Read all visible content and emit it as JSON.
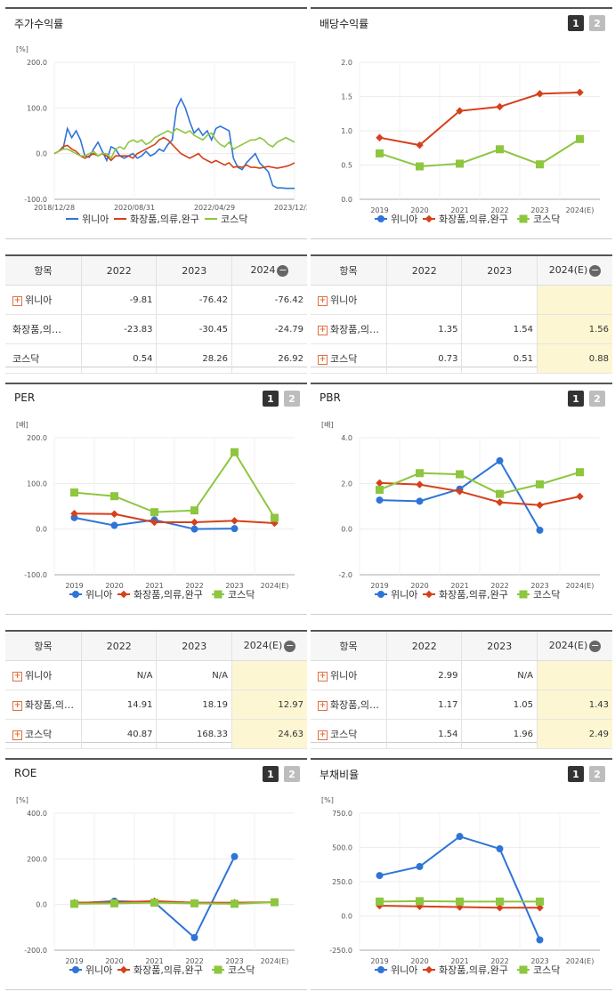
{
  "colors": {
    "s1": "#2e74d8",
    "s2": "#d6401a",
    "s3": "#8dc63f"
  },
  "series_names": [
    "위니아",
    "화장품,의류,완구",
    "코스닥"
  ],
  "panels": {
    "stock": {
      "title": "주가수익률",
      "unit": "[%]"
    },
    "dividend": {
      "title": "배당수익률",
      "unit": ""
    },
    "per": {
      "title": "PER",
      "unit": "[배]"
    },
    "pbr": {
      "title": "PBR",
      "unit": "[배]"
    },
    "roe": {
      "title": "ROE",
      "unit": "[%]"
    },
    "debt": {
      "title": "부채비율",
      "unit": "[%]"
    }
  },
  "tabs": {
    "one": "1",
    "two": "2"
  },
  "tables": {
    "stock": {
      "header": [
        "항목",
        "2022",
        "2023",
        "2024"
      ],
      "rows": [
        {
          "name": "위니아",
          "plus": true,
          "vals": [
            "-9.81",
            "-76.42",
            "-76.42"
          ]
        },
        {
          "name": "화장품,의…",
          "plus": false,
          "vals": [
            "-23.83",
            "-30.45",
            "-24.79"
          ]
        },
        {
          "name": "코스닥",
          "plus": false,
          "vals": [
            "0.54",
            "28.26",
            "26.92"
          ]
        }
      ]
    },
    "dividend": {
      "header": [
        "항목",
        "2022",
        "2023",
        "2024(E)"
      ],
      "rows": [
        {
          "name": "위니아",
          "plus": true,
          "vals": [
            "",
            "",
            ""
          ]
        },
        {
          "name": "화장품,의…",
          "plus": true,
          "vals": [
            "1.35",
            "1.54",
            "1.56"
          ]
        },
        {
          "name": "코스닥",
          "plus": true,
          "vals": [
            "0.73",
            "0.51",
            "0.88"
          ]
        }
      ]
    },
    "per": {
      "header": [
        "항목",
        "2022",
        "2023",
        "2024(E)"
      ],
      "rows": [
        {
          "name": "위니아",
          "plus": true,
          "vals": [
            "N/A",
            "N/A",
            ""
          ]
        },
        {
          "name": "화장품,의…",
          "plus": true,
          "vals": [
            "14.91",
            "18.19",
            "12.97"
          ]
        },
        {
          "name": "코스닥",
          "plus": true,
          "vals": [
            "40.87",
            "168.33",
            "24.63"
          ]
        }
      ]
    },
    "pbr": {
      "header": [
        "항목",
        "2022",
        "2023",
        "2024(E)"
      ],
      "rows": [
        {
          "name": "위니아",
          "plus": true,
          "vals": [
            "2.99",
            "N/A",
            ""
          ]
        },
        {
          "name": "화장품,의…",
          "plus": true,
          "vals": [
            "1.17",
            "1.05",
            "1.43"
          ]
        },
        {
          "name": "코스닥",
          "plus": true,
          "vals": [
            "1.54",
            "1.96",
            "2.49"
          ]
        }
      ]
    }
  },
  "chart_data": [
    {
      "id": "stock",
      "type": "line",
      "x_ticks": [
        "2018/12/28",
        "2020/08/31",
        "2022/04/29",
        "2023/12/28"
      ],
      "ylim": [
        -100,
        200
      ],
      "yticks": [
        "200.0",
        "100.0",
        "0.0",
        "-100.0"
      ],
      "series": [
        {
          "name": "위니아",
          "values": [
            0,
            5,
            10,
            55,
            35,
            50,
            30,
            -5,
            -8,
            10,
            25,
            5,
            -15,
            15,
            10,
            -5,
            -10,
            -5,
            0,
            -10,
            -5,
            5,
            -5,
            0,
            10,
            5,
            20,
            30,
            100,
            120,
            100,
            70,
            45,
            55,
            40,
            50,
            30,
            55,
            60,
            55,
            50,
            -10,
            -30,
            -35,
            -20,
            -10,
            0,
            -20,
            -30,
            -40,
            -70,
            -75,
            -75,
            -76,
            -76,
            -76
          ]
        },
        {
          "name": "화장품,의류,완구",
          "values": [
            0,
            5,
            15,
            18,
            10,
            5,
            -5,
            -10,
            -5,
            0,
            -5,
            0,
            -5,
            -15,
            -5,
            -5,
            -5,
            -5,
            -10,
            0,
            5,
            10,
            15,
            20,
            30,
            35,
            30,
            20,
            10,
            0,
            -5,
            -10,
            -5,
            0,
            -10,
            -15,
            -20,
            -15,
            -20,
            -25,
            -20,
            -30,
            -28,
            -30,
            -25,
            -30,
            -30,
            -32,
            -30,
            -28,
            -30,
            -32,
            -30,
            -28,
            -25,
            -20
          ]
        },
        {
          "name": "코스닥",
          "values": [
            0,
            5,
            10,
            10,
            5,
            0,
            -5,
            -5,
            0,
            5,
            -5,
            0,
            0,
            -10,
            10,
            15,
            10,
            25,
            30,
            25,
            30,
            20,
            25,
            35,
            40,
            45,
            50,
            45,
            55,
            50,
            45,
            50,
            40,
            35,
            30,
            40,
            45,
            30,
            20,
            15,
            25,
            10,
            15,
            20,
            25,
            30,
            30,
            35,
            30,
            20,
            15,
            25,
            30,
            35,
            30,
            25
          ]
        }
      ]
    },
    {
      "id": "dividend",
      "type": "line",
      "categories": [
        "2019",
        "2020",
        "2021",
        "2022",
        "2023",
        "2024(E)"
      ],
      "ylim": [
        0,
        2.0
      ],
      "yticks": [
        "2.0",
        "1.5",
        "1.0",
        "0.5",
        "0.0"
      ],
      "series": [
        {
          "name": "위니아",
          "values": [
            null,
            null,
            null,
            null,
            null,
            null
          ]
        },
        {
          "name": "화장품,의류,완구",
          "values": [
            0.9,
            0.79,
            1.29,
            1.35,
            1.54,
            1.56
          ]
        },
        {
          "name": "코스닥",
          "values": [
            0.67,
            0.48,
            0.52,
            0.73,
            0.51,
            0.88
          ]
        }
      ]
    },
    {
      "id": "per",
      "type": "line",
      "categories": [
        "2019",
        "2020",
        "2021",
        "2022",
        "2023",
        "2024(E)"
      ],
      "ylim": [
        -100,
        200
      ],
      "yticks": [
        "200.0",
        "100.0",
        "0.0",
        "-100.0"
      ],
      "series": [
        {
          "name": "위니아",
          "values": [
            25,
            8,
            20,
            0,
            1,
            null
          ]
        },
        {
          "name": "화장품,의류,완구",
          "values": [
            34,
            33,
            15,
            15,
            18.19,
            12.97
          ]
        },
        {
          "name": "코스닥",
          "values": [
            80,
            72,
            37,
            40.87,
            168.33,
            24.63
          ]
        }
      ]
    },
    {
      "id": "pbr",
      "type": "line",
      "categories": [
        "2019",
        "2020",
        "2021",
        "2022",
        "2023",
        "2024(E)"
      ],
      "ylim": [
        -2,
        4
      ],
      "yticks": [
        "4.0",
        "2.0",
        "0.0",
        "-2.0"
      ],
      "series": [
        {
          "name": "위니아",
          "values": [
            1.27,
            1.22,
            1.75,
            2.99,
            -0.05,
            null
          ]
        },
        {
          "name": "화장품,의류,완구",
          "values": [
            2.02,
            1.95,
            1.65,
            1.17,
            1.05,
            1.43
          ]
        },
        {
          "name": "코스닥",
          "values": [
            1.72,
            2.45,
            2.4,
            1.54,
            1.96,
            2.49
          ]
        }
      ]
    },
    {
      "id": "roe",
      "type": "line",
      "categories": [
        "2019",
        "2020",
        "2021",
        "2022",
        "2023",
        "2024(E)"
      ],
      "ylim": [
        -200,
        400
      ],
      "yticks": [
        "400.0",
        "200.0",
        "0.0",
        "-200.0"
      ],
      "series": [
        {
          "name": "위니아",
          "values": [
            5,
            15,
            10,
            -145,
            210,
            null
          ]
        },
        {
          "name": "화장품,의류,완구",
          "values": [
            8,
            10,
            15,
            8,
            8,
            10
          ]
        },
        {
          "name": "코스닥",
          "values": [
            3,
            5,
            8,
            5,
            3,
            10
          ]
        }
      ]
    },
    {
      "id": "debt",
      "type": "line",
      "categories": [
        "2019",
        "2020",
        "2021",
        "2022",
        "2023",
        "2024(E)"
      ],
      "ylim": [
        -250,
        750
      ],
      "yticks": [
        "750.0",
        "500.0",
        "250.0",
        "0.0",
        "-250.0"
      ],
      "series": [
        {
          "name": "위니아",
          "values": [
            295,
            360,
            580,
            490,
            -175,
            null
          ]
        },
        {
          "name": "화장품,의류,완구",
          "values": [
            75,
            70,
            65,
            60,
            60,
            null
          ]
        },
        {
          "name": "코스닥",
          "values": [
            105,
            108,
            105,
            105,
            105,
            null
          ]
        }
      ]
    }
  ]
}
